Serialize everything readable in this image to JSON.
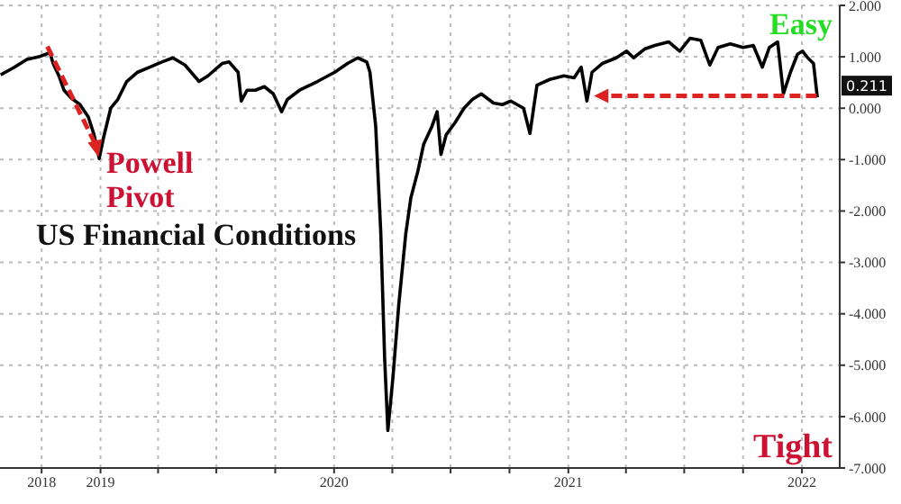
{
  "chart_data": {
    "type": "line",
    "title": "US Financial Conditions",
    "x": [
      "2018-07-29",
      "2018-08-20",
      "2018-09-08",
      "2018-09-27",
      "2018-10-14",
      "2018-10-19",
      "2018-10-28",
      "2018-11-05",
      "2018-11-16",
      "2018-11-30",
      "2018-12-13",
      "2018-12-22",
      "2018-12-30",
      "2019-01-06",
      "2019-01-17",
      "2019-01-28",
      "2019-02-11",
      "2019-02-28",
      "2019-03-19",
      "2019-04-07",
      "2019-04-24",
      "2019-05-13",
      "2019-06-04",
      "2019-06-18",
      "2019-07-10",
      "2019-07-21",
      "2019-08-04",
      "2019-08-09",
      "2019-08-18",
      "2019-08-31",
      "2019-09-14",
      "2019-09-28",
      "2019-10-11",
      "2019-10-20",
      "2019-11-08",
      "2019-12-06",
      "2020-01-02",
      "2020-01-22",
      "2020-02-07",
      "2020-02-21",
      "2020-02-26",
      "2020-03-06",
      "2020-03-14",
      "2020-03-20",
      "2020-03-25",
      "2020-04-02",
      "2020-04-11",
      "2020-04-22",
      "2020-04-30",
      "2020-05-11",
      "2020-05-20",
      "2020-06-02",
      "2020-06-10",
      "2020-06-16",
      "2020-06-24",
      "2020-07-08",
      "2020-07-22",
      "2020-08-04",
      "2020-08-18",
      "2020-09-06",
      "2020-09-20",
      "2020-10-03",
      "2020-10-23",
      "2020-11-02",
      "2020-11-13",
      "2020-12-03",
      "2020-12-25",
      "2021-01-10",
      "2021-01-21",
      "2021-01-30",
      "2021-02-07",
      "2021-02-23",
      "2021-03-17",
      "2021-04-02",
      "2021-04-13",
      "2021-04-30",
      "2021-05-16",
      "2021-06-07",
      "2021-06-24",
      "2021-07-10",
      "2021-07-27",
      "2021-08-10",
      "2021-08-23",
      "2021-09-11",
      "2021-10-01",
      "2021-10-17",
      "2021-10-31",
      "2021-11-11",
      "2021-11-24",
      "2021-12-03",
      "2021-12-14",
      "2021-12-25",
      "2022-01-02",
      "2022-01-10",
      "2022-01-19",
      "2022-01-25"
    ],
    "series": [
      {
        "color": "#000000",
        "values": [
          0.65,
          0.8,
          0.95,
          1.0,
          1.08,
          0.87,
          0.63,
          0.35,
          0.2,
          0.07,
          -0.17,
          -0.52,
          -0.98,
          -0.56,
          0.0,
          0.17,
          0.52,
          0.7,
          0.8,
          0.9,
          0.98,
          0.84,
          0.52,
          0.63,
          0.87,
          0.9,
          0.7,
          0.14,
          0.35,
          0.35,
          0.42,
          0.28,
          -0.07,
          0.17,
          0.35,
          0.52,
          0.7,
          0.87,
          0.98,
          0.9,
          0.7,
          -0.35,
          -2.44,
          -4.88,
          -6.27,
          -5.23,
          -3.83,
          -2.44,
          -1.74,
          -1.22,
          -0.7,
          -0.35,
          -0.07,
          -0.9,
          -0.52,
          -0.28,
          0.0,
          0.17,
          0.28,
          0.1,
          0.07,
          0.14,
          0.0,
          -0.49,
          0.45,
          0.56,
          0.63,
          0.59,
          0.8,
          0.14,
          0.7,
          0.87,
          0.98,
          1.11,
          0.98,
          1.15,
          1.22,
          1.29,
          1.11,
          1.36,
          1.32,
          0.84,
          1.18,
          1.25,
          1.18,
          1.22,
          0.8,
          1.18,
          1.29,
          0.28,
          0.7,
          1.05,
          1.11,
          0.98,
          0.87,
          0.211
        ]
      }
    ],
    "xlim": [
      "2018-07-28",
      "2022-03-01"
    ],
    "xticks": [
      {
        "value": "2018-10-01",
        "label": "2018"
      },
      {
        "value": "2019-01-01",
        "label": "2019"
      },
      {
        "value": "2019-04-01",
        "label": null
      },
      {
        "value": "2019-07-01",
        "label": null
      },
      {
        "value": "2019-10-01",
        "label": null
      },
      {
        "value": "2020-01-01",
        "label": "2020"
      },
      {
        "value": "2020-04-01",
        "label": null
      },
      {
        "value": "2020-07-01",
        "label": null
      },
      {
        "value": "2020-10-01",
        "label": null
      },
      {
        "value": "2021-01-01",
        "label": "2021"
      },
      {
        "value": "2021-04-01",
        "label": null
      },
      {
        "value": "2021-07-01",
        "label": null
      },
      {
        "value": "2021-10-01",
        "label": null
      },
      {
        "value": "2022-01-01",
        "label": "2022"
      }
    ],
    "ylim": [
      -7,
      2
    ],
    "yticks": [
      {
        "value": 2,
        "label": "2.000"
      },
      {
        "value": 1,
        "label": "1.000"
      },
      {
        "value": 0,
        "label": "0.000"
      },
      {
        "value": -1,
        "label": "-1.000"
      },
      {
        "value": -2,
        "label": "-2.000"
      },
      {
        "value": -3,
        "label": "-3.000"
      },
      {
        "value": -4,
        "label": "-4.000"
      },
      {
        "value": -5,
        "label": "-5.000"
      },
      {
        "value": -6,
        "label": "-6.000"
      },
      {
        "value": -7,
        "label": "-7.000"
      }
    ],
    "grid": true,
    "legend": false,
    "marker": "none",
    "line_style": "solid",
    "annotations": [
      "Easy",
      "Tight",
      {
        "text": "Powell Pivot",
        "x": "2018-12-30",
        "y": -0.98
      },
      {
        "text": "0.211",
        "x": "2022-01-25",
        "y": 0.211
      }
    ]
  }
}
